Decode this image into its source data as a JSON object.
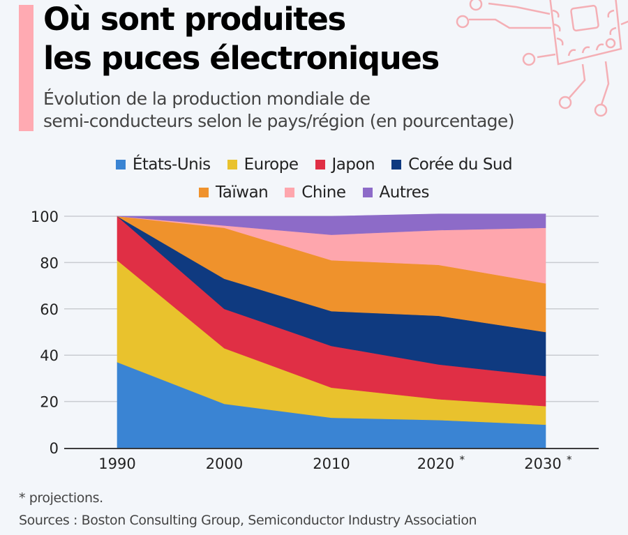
{
  "header": {
    "title_line1": "Où sont produites",
    "title_line2": "les puces électroniques",
    "subtitle_line1": "Évolution de la production mondiale de",
    "subtitle_line2": "semi-conducteurs selon le pays/région (en pourcentage)",
    "accent_color": "#ffaab2",
    "decoration_icon": "microchip-circuit-icon"
  },
  "footer": {
    "note": "* projections.",
    "sources": "Sources : Boston Consulting Group, Semiconductor Industry Association"
  },
  "chart_data": {
    "type": "area",
    "stacked": true,
    "title": "Où sont produites les puces électroniques",
    "subtitle": "Évolution de la production mondiale de semi-conducteurs selon le pays/région (en pourcentage)",
    "xlabel": "",
    "ylabel": "",
    "categories": [
      "1990",
      "2000",
      "2010",
      "2020 *",
      "2030 *"
    ],
    "ylim": [
      0,
      100
    ],
    "yticks": [
      0,
      20,
      40,
      60,
      80,
      100
    ],
    "grid": true,
    "legend_position": "top-center",
    "series": [
      {
        "name": "États-Unis",
        "color": "#3a84d3",
        "values": [
          37,
          19,
          13,
          12,
          10
        ]
      },
      {
        "name": "Europe",
        "color": "#e9c22d",
        "values": [
          44,
          24,
          13,
          9,
          8
        ]
      },
      {
        "name": "Japon",
        "color": "#e02f45",
        "values": [
          19,
          17,
          18,
          15,
          13
        ]
      },
      {
        "name": "Corée du Sud",
        "color": "#0f3a80",
        "values": [
          0,
          13,
          15,
          21,
          19
        ]
      },
      {
        "name": "Taïwan",
        "color": "#ef922c",
        "values": [
          0,
          22,
          22,
          22,
          21
        ]
      },
      {
        "name": "Chine",
        "color": "#fea6ad",
        "values": [
          0,
          1,
          11,
          15,
          24
        ]
      },
      {
        "name": "Autres",
        "color": "#8d6bc8",
        "values": [
          0,
          4,
          8,
          7,
          6
        ]
      }
    ],
    "notes": [
      "* projections."
    ]
  }
}
